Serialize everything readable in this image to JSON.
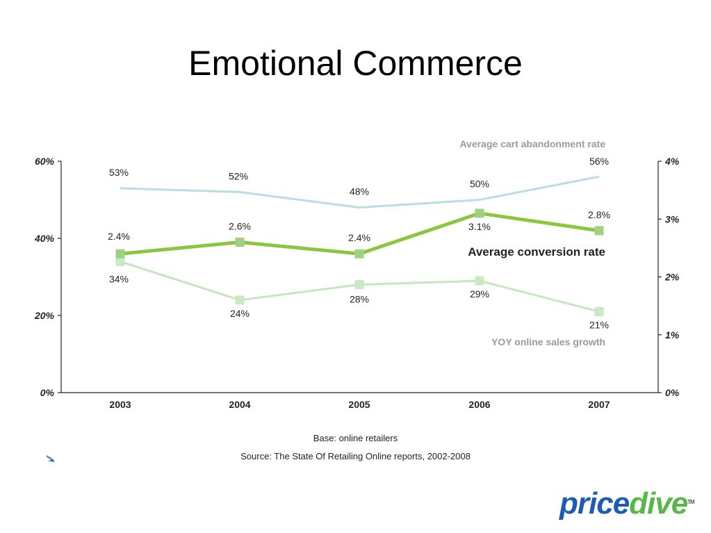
{
  "slide": {
    "title": "Emotional Commerce",
    "base_note": "Base: online retailers",
    "source_note": "Source: The State Of Retailing Online reports, 2002-2008",
    "logo": {
      "part1": "price",
      "part2": "dive",
      "tm": "TM"
    }
  },
  "colors": {
    "abandonment": "#b9dde6",
    "conversion": "#8cc63f",
    "conversion_marker": "#9ed27f",
    "yoy": "#c6e5c0",
    "yoy_marker": "#c9e8c4",
    "label_gray": "#9a9a9a",
    "logo_blue": "#1e5bb5",
    "logo_green": "#56b947"
  },
  "chart_data": {
    "type": "line",
    "categories": [
      "2003",
      "2004",
      "2005",
      "2006",
      "2007"
    ],
    "left_axis": {
      "ticks": [
        "0%",
        "20%",
        "40%",
        "60%"
      ],
      "ylim": [
        0,
        60
      ]
    },
    "right_axis": {
      "ticks": [
        "0%",
        "1%",
        "2%",
        "3%",
        "4%"
      ],
      "ylim": [
        0,
        4
      ]
    },
    "grid": false,
    "series": [
      {
        "key": "abandonment",
        "name": "Average cart abandonment rate",
        "axis": "left",
        "values": [
          53,
          52,
          48,
          50,
          56
        ],
        "labels": [
          "53%",
          "52%",
          "48%",
          "50%",
          "56%"
        ],
        "markers": false
      },
      {
        "key": "conversion",
        "name": "Average conversion rate",
        "axis": "right",
        "values": [
          2.4,
          2.6,
          2.4,
          3.1,
          2.8
        ],
        "labels": [
          "2.4%",
          "2.6%",
          "2.4%",
          "3.1%",
          "2.8%"
        ],
        "markers": true
      },
      {
        "key": "yoy",
        "name": "YOY online sales growth",
        "axis": "left",
        "values": [
          34,
          24,
          28,
          29,
          21
        ],
        "labels": [
          "34%",
          "24%",
          "28%",
          "29%",
          "21%"
        ],
        "markers": true
      }
    ]
  }
}
